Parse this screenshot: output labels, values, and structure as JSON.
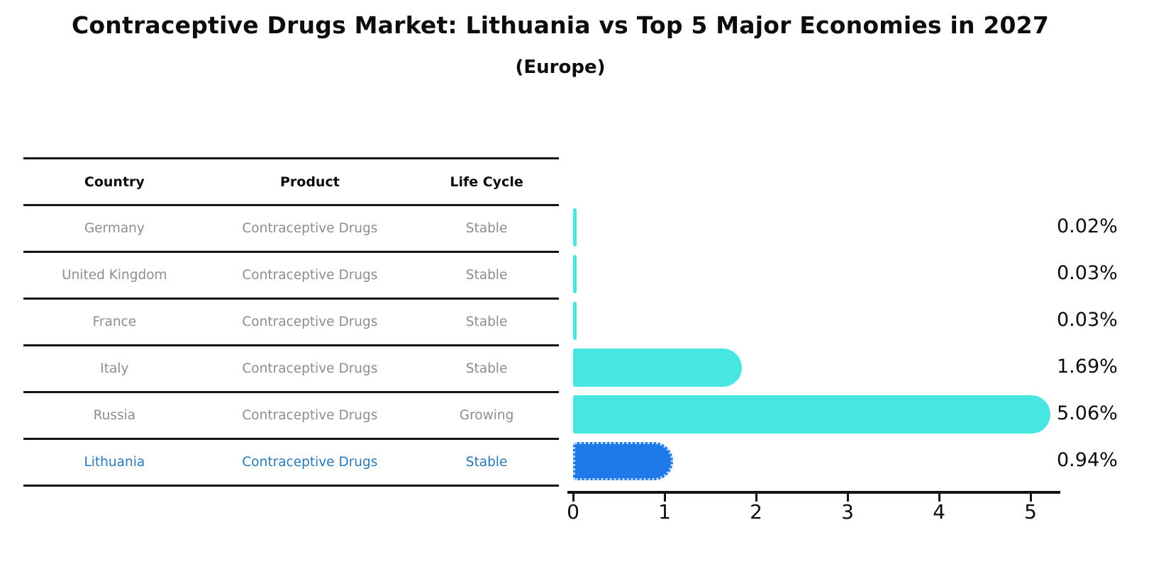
{
  "title": "Contraceptive Drugs Market: Lithuania vs Top 5 Major Economies in 2027",
  "subtitle": "(Europe)",
  "table": {
    "headers": [
      "Country",
      "Product",
      "Life Cycle"
    ],
    "rows": [
      {
        "country": "Germany",
        "product": "Contraceptive Drugs",
        "life_cycle": "Stable",
        "highlight": false
      },
      {
        "country": "United Kingdom",
        "product": "Contraceptive Drugs",
        "life_cycle": "Stable",
        "highlight": false
      },
      {
        "country": "France",
        "product": "Contraceptive Drugs",
        "life_cycle": "Stable",
        "highlight": false
      },
      {
        "country": "Italy",
        "product": "Contraceptive Drugs",
        "life_cycle": "Stable",
        "highlight": false
      },
      {
        "country": "Russia",
        "product": "Contraceptive Drugs",
        "life_cycle": "Growing",
        "highlight": false
      },
      {
        "country": "Lithuania",
        "product": "Contraceptive Drugs",
        "life_cycle": "Stable",
        "highlight": true
      }
    ]
  },
  "chart_data": {
    "type": "bar",
    "orientation": "horizontal",
    "title": "Contraceptive Drugs Market: Lithuania vs Top 5 Major Economies in 2027 (Europe)",
    "categories": [
      "Germany",
      "United Kingdom",
      "France",
      "Italy",
      "Russia",
      "Lithuania"
    ],
    "values": [
      0.02,
      0.03,
      0.03,
      1.69,
      5.06,
      0.94
    ],
    "value_labels": [
      "0.02%",
      "0.03%",
      "0.03%",
      "1.69%",
      "5.06%",
      "0.94%"
    ],
    "xlabel": "",
    "ylabel": "",
    "x_ticks": [
      "0",
      "1",
      "2",
      "3",
      "4",
      "5"
    ],
    "xlim": [
      0,
      5.4
    ],
    "grid": false,
    "legend": false,
    "bar_color": "#47e6e1",
    "highlight_bar_color": "#1e79e9",
    "highlight_category": "Lithuania"
  },
  "colors": {
    "background": "#ffffff",
    "title_text": "#0d0d0d",
    "table_line": "#141414",
    "row_text": "#8d8d8d",
    "highlight_text": "#2878b9",
    "axis": "#141414"
  }
}
